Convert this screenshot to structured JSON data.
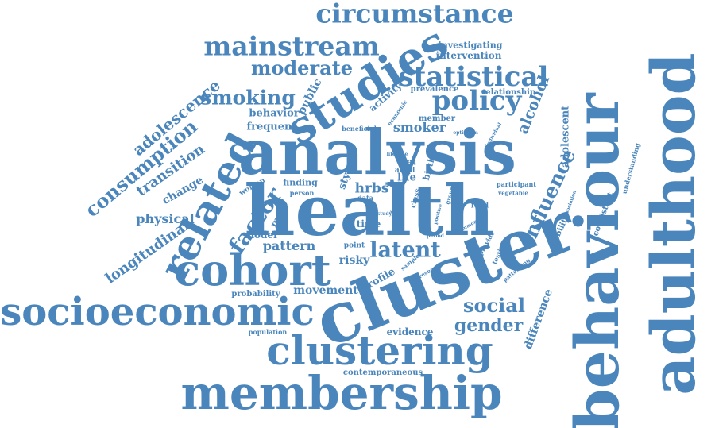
{
  "palette": {
    "word_color": "#4a86bc",
    "background": "#ffffff"
  },
  "words": [
    {
      "id": "w0",
      "text": "cluster"
    },
    {
      "id": "w1",
      "text": "health"
    },
    {
      "id": "w2",
      "text": "analysis"
    },
    {
      "id": "w3",
      "text": "behaviour"
    },
    {
      "id": "w4",
      "text": "adulthood"
    },
    {
      "id": "w5",
      "text": "membership"
    },
    {
      "id": "w6",
      "text": "socioeconomic"
    },
    {
      "id": "w7",
      "text": "clustering"
    },
    {
      "id": "w8",
      "text": "cohort"
    },
    {
      "id": "w9",
      "text": "studies"
    },
    {
      "id": "w10",
      "text": "related"
    },
    {
      "id": "w11",
      "text": "circumstance"
    },
    {
      "id": "w12",
      "text": "mainstream"
    },
    {
      "id": "w13",
      "text": "statistical"
    },
    {
      "id": "w14",
      "text": "policy"
    },
    {
      "id": "w15",
      "text": "moderate"
    },
    {
      "id": "w16",
      "text": "smoking"
    },
    {
      "id": "w17",
      "text": "consumption"
    },
    {
      "id": "w18",
      "text": "adolescence"
    },
    {
      "id": "w19",
      "text": "influence"
    },
    {
      "id": "w20",
      "text": "factor"
    },
    {
      "id": "w21",
      "text": "latent"
    },
    {
      "id": "w22",
      "text": "social"
    },
    {
      "id": "w23",
      "text": "gender"
    },
    {
      "id": "w24",
      "text": "longitudinal"
    },
    {
      "id": "w25",
      "text": "transition"
    },
    {
      "id": "w26",
      "text": "alcohol"
    },
    {
      "id": "w27",
      "text": "physical"
    },
    {
      "id": "w28",
      "text": "pattern"
    },
    {
      "id": "w29",
      "text": "smoker"
    },
    {
      "id": "w30",
      "text": "difference"
    },
    {
      "id": "w31",
      "text": "adolescent"
    },
    {
      "id": "w32",
      "text": "public"
    },
    {
      "id": "w33",
      "text": "change"
    },
    {
      "id": "w34",
      "text": "hrbs"
    },
    {
      "id": "w35",
      "text": "profile"
    },
    {
      "id": "w36",
      "text": "risky"
    },
    {
      "id": "w37",
      "text": "movement"
    },
    {
      "id": "w38",
      "text": "probability"
    },
    {
      "id": "w39",
      "text": "evidence"
    },
    {
      "id": "w40",
      "text": "contemporaneous"
    },
    {
      "id": "w41",
      "text": "population"
    },
    {
      "id": "w42",
      "text": "behavior"
    },
    {
      "id": "w43",
      "text": "frequent"
    },
    {
      "id": "w44",
      "text": "activity"
    },
    {
      "id": "w45",
      "text": "intervention"
    },
    {
      "id": "w46",
      "text": "investigating"
    },
    {
      "id": "w47",
      "text": "prevalence"
    },
    {
      "id": "w48",
      "text": "relationship"
    },
    {
      "id": "w49",
      "text": "member"
    },
    {
      "id": "w50",
      "text": "beneficial"
    },
    {
      "id": "w51",
      "text": "diet"
    },
    {
      "id": "w52",
      "text": "adult"
    },
    {
      "id": "w53",
      "text": "life"
    },
    {
      "id": "w54",
      "text": "style"
    },
    {
      "id": "w55",
      "text": "finding"
    },
    {
      "id": "w56",
      "text": "person"
    },
    {
      "id": "w57",
      "text": "woman"
    },
    {
      "id": "w58",
      "text": "more"
    },
    {
      "id": "w59",
      "text": "model"
    },
    {
      "id": "w60",
      "text": "time"
    },
    {
      "id": "w61",
      "text": "point"
    },
    {
      "id": "w62",
      "text": "stability"
    },
    {
      "id": "w63",
      "text": "consistent"
    },
    {
      "id": "w64",
      "text": "understanding"
    },
    {
      "id": "w65",
      "text": "association"
    },
    {
      "id": "w66",
      "text": "participant"
    },
    {
      "id": "w67",
      "text": "vegetable"
    },
    {
      "id": "w68",
      "text": "food"
    },
    {
      "id": "w69",
      "text": "testing"
    },
    {
      "id": "w70",
      "text": "patterning"
    },
    {
      "id": "w71",
      "text": "provide"
    },
    {
      "id": "w72",
      "text": "research"
    },
    {
      "id": "w73",
      "text": "sample"
    },
    {
      "id": "w74",
      "text": "birth"
    },
    {
      "id": "w75",
      "text": "class"
    },
    {
      "id": "w76",
      "text": "group"
    },
    {
      "id": "w77",
      "text": "data"
    },
    {
      "id": "w78",
      "text": "economic"
    },
    {
      "id": "w79",
      "text": "optimism"
    },
    {
      "id": "w80",
      "text": "individual"
    },
    {
      "id": "w81",
      "text": "study"
    },
    {
      "id": "w82",
      "text": "positive"
    },
    {
      "id": "w83",
      "text": "common"
    },
    {
      "id": "w84",
      "text": "lifestyle"
    },
    {
      "id": "w85",
      "text": "sweet"
    },
    {
      "id": "w86",
      "text": "period"
    },
    {
      "id": "w87",
      "text": "young"
    }
  ]
}
